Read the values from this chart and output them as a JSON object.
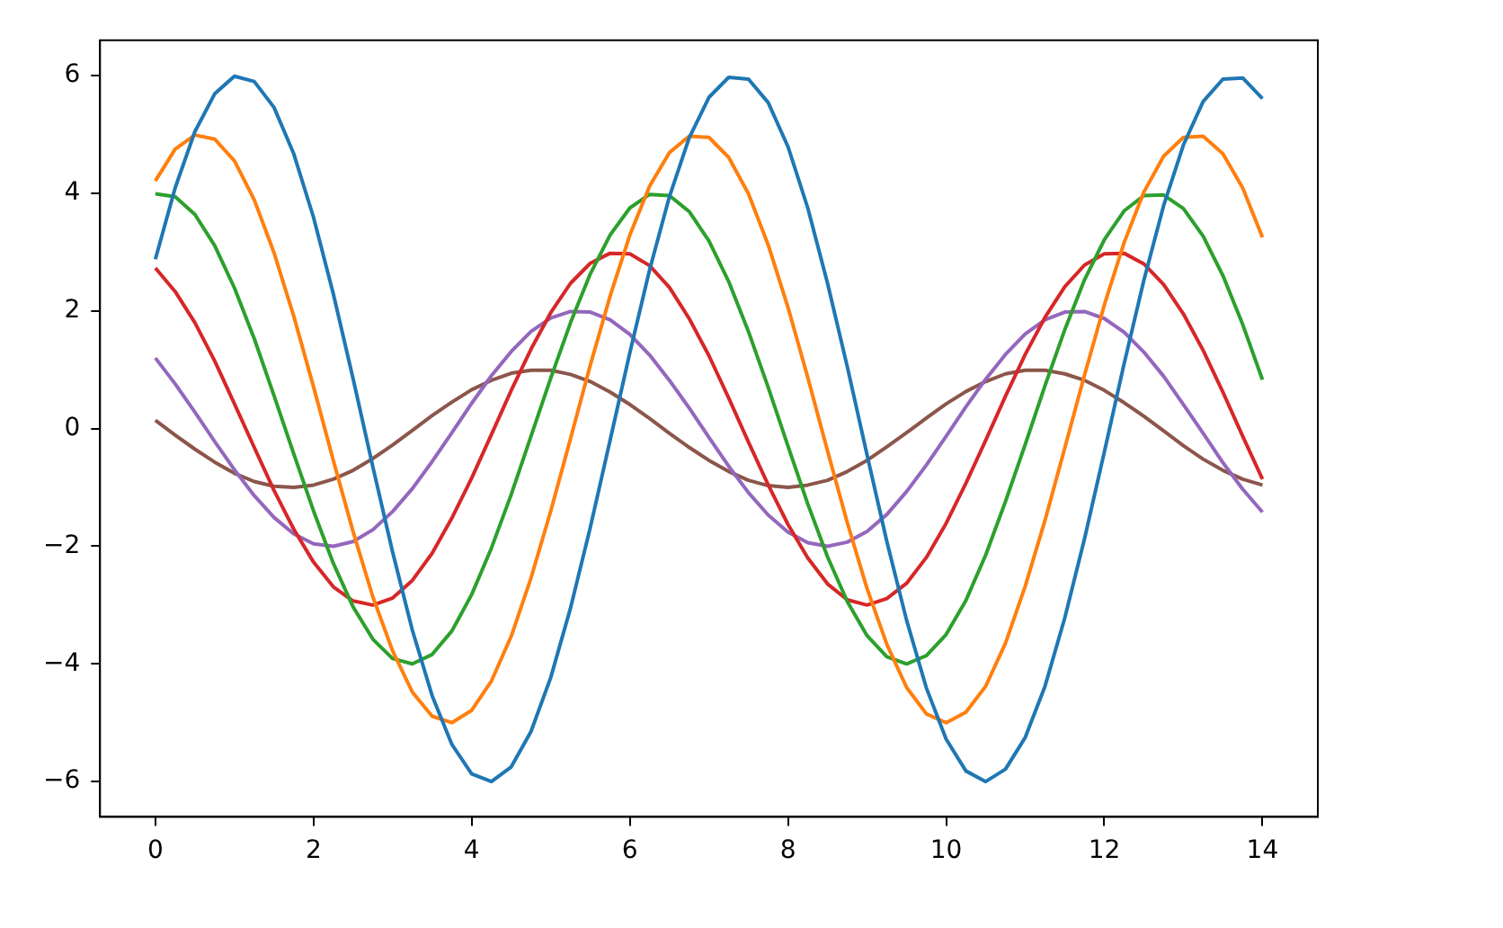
{
  "chart_data": {
    "type": "line",
    "x": [
      0,
      0.25,
      0.5,
      0.75,
      1,
      1.25,
      1.5,
      1.75,
      2,
      2.25,
      2.5,
      2.75,
      3,
      3.25,
      3.5,
      3.75,
      4,
      4.25,
      4.5,
      4.75,
      5,
      5.25,
      5.5,
      5.75,
      6,
      6.25,
      6.5,
      6.75,
      7,
      7.25,
      7.5,
      7.75,
      8,
      8.25,
      8.5,
      8.75,
      9,
      9.25,
      9.5,
      9.75,
      10,
      10.25,
      10.5,
      10.75,
      11,
      11.25,
      11.5,
      11.75,
      12,
      12.25,
      12.5,
      12.75,
      13,
      13.25,
      13.5,
      13.75,
      14
    ],
    "series": [
      {
        "color": "#1f77b4",
        "values": [
          2.88,
          4.09,
          5.05,
          5.69,
          5.99,
          5.9,
          5.46,
          4.67,
          3.59,
          2.29,
          0.85,
          -0.65,
          -2.1,
          -3.43,
          -4.54,
          -5.37,
          -5.87,
          -6.0,
          -5.75,
          -5.15,
          -4.23,
          -3.05,
          -1.68,
          -0.2,
          1.29,
          2.7,
          3.94,
          4.94,
          5.63,
          5.97,
          5.94,
          5.54,
          4.79,
          3.75,
          2.47,
          1.05,
          -0.45,
          -1.92,
          -3.26,
          -4.41,
          -5.28,
          -5.82,
          -6.0,
          -5.79,
          -5.25,
          -4.38,
          -3.22,
          -1.87,
          -0.4,
          1.1,
          2.52,
          3.79,
          4.82,
          5.56,
          5.94,
          5.96,
          5.61
        ]
      },
      {
        "color": "#ff7f0e",
        "values": [
          4.21,
          4.75,
          4.99,
          4.92,
          4.55,
          3.89,
          2.99,
          1.91,
          0.71,
          -0.54,
          -1.75,
          -2.86,
          -3.78,
          -4.48,
          -4.89,
          -5.0,
          -4.79,
          -4.29,
          -3.53,
          -2.54,
          -1.4,
          -0.17,
          1.08,
          2.25,
          3.29,
          4.12,
          4.69,
          4.97,
          4.95,
          4.61,
          3.99,
          3.12,
          2.06,
          0.87,
          -0.38,
          -1.6,
          -2.72,
          -3.67,
          -4.4,
          -4.85,
          -5.0,
          -4.82,
          -4.38,
          -3.65,
          -2.68,
          -1.56,
          -0.33,
          0.91,
          2.1,
          3.16,
          4.02,
          4.63,
          4.95,
          4.97,
          4.67,
          4.09,
          3.25
        ]
      },
      {
        "color": "#2ca02c",
        "values": [
          3.99,
          3.94,
          3.64,
          3.11,
          2.39,
          1.53,
          0.56,
          -0.43,
          -1.4,
          -2.29,
          -3.03,
          -3.58,
          -3.91,
          -4.0,
          -3.84,
          -3.44,
          -2.82,
          -2.03,
          -1.12,
          -0.13,
          0.86,
          1.8,
          2.63,
          3.29,
          3.75,
          3.98,
          3.96,
          3.69,
          3.19,
          2.5,
          1.65,
          0.7,
          -0.3,
          -1.28,
          -2.18,
          -2.94,
          -3.52,
          -3.88,
          -4.0,
          -3.86,
          -3.5,
          -2.92,
          -2.15,
          -1.24,
          -0.27,
          0.73,
          1.68,
          2.53,
          3.21,
          3.7,
          3.96,
          3.97,
          3.74,
          3.27,
          2.6,
          1.77,
          0.83
        ]
      },
      {
        "color": "#d62728",
        "values": [
          2.73,
          2.33,
          1.8,
          1.15,
          0.42,
          -0.32,
          -1.05,
          -1.71,
          -2.27,
          -2.69,
          -2.93,
          -3.0,
          -2.88,
          -2.58,
          -2.12,
          -1.52,
          -0.84,
          -0.1,
          0.65,
          1.35,
          1.97,
          2.47,
          2.81,
          2.98,
          2.97,
          2.77,
          2.4,
          1.87,
          1.24,
          0.52,
          -0.23,
          -0.96,
          -1.63,
          -2.2,
          -2.64,
          -2.91,
          -3.0,
          -2.89,
          -2.63,
          -2.19,
          -1.61,
          -0.93,
          -0.2,
          0.55,
          1.26,
          1.89,
          2.41,
          2.78,
          2.97,
          2.98,
          2.8,
          2.45,
          1.95,
          1.33,
          0.62,
          -0.13,
          -0.86
        ]
      },
      {
        "color": "#9467bd",
        "values": [
          1.2,
          0.76,
          0.28,
          -0.22,
          -0.7,
          -1.14,
          -1.51,
          -1.79,
          -1.96,
          -2.0,
          -1.92,
          -1.72,
          -1.41,
          -1.02,
          -0.56,
          -0.07,
          0.43,
          0.9,
          1.31,
          1.65,
          1.88,
          1.99,
          1.98,
          1.85,
          1.6,
          1.25,
          0.82,
          0.35,
          -0.15,
          -0.64,
          -1.09,
          -1.47,
          -1.76,
          -1.94,
          -2.0,
          -1.93,
          -1.75,
          -1.46,
          -1.07,
          -0.62,
          -0.13,
          0.37,
          0.84,
          1.26,
          1.61,
          1.85,
          1.98,
          1.99,
          1.87,
          1.64,
          1.3,
          0.89,
          0.41,
          -0.08,
          -0.58,
          -1.03,
          -1.42
        ]
      },
      {
        "color": "#8c564b",
        "values": [
          0.14,
          -0.11,
          -0.35,
          -0.57,
          -0.76,
          -0.9,
          -0.98,
          -1.0,
          -0.96,
          -0.86,
          -0.71,
          -0.51,
          -0.28,
          -0.03,
          0.22,
          0.45,
          0.66,
          0.82,
          0.94,
          0.99,
          0.99,
          0.92,
          0.8,
          0.62,
          0.41,
          0.17,
          -0.08,
          -0.32,
          -0.54,
          -0.73,
          -0.88,
          -0.97,
          -1.0,
          -0.96,
          -0.88,
          -0.73,
          -0.54,
          -0.31,
          -0.07,
          0.18,
          0.42,
          0.63,
          0.8,
          0.93,
          0.99,
          0.99,
          0.93,
          0.82,
          0.65,
          0.44,
          0.21,
          -0.04,
          -0.29,
          -0.52,
          -0.71,
          -0.86,
          -0.96
        ]
      }
    ],
    "xlim": [
      -0.7,
      14.7
    ],
    "ylim": [
      -6.6,
      6.6
    ],
    "xticks": [
      0,
      2,
      4,
      6,
      8,
      10,
      12,
      14
    ],
    "yticks": [
      -6,
      -4,
      -2,
      0,
      2,
      4,
      6
    ],
    "grid": false,
    "legend": false,
    "marker": "none"
  }
}
